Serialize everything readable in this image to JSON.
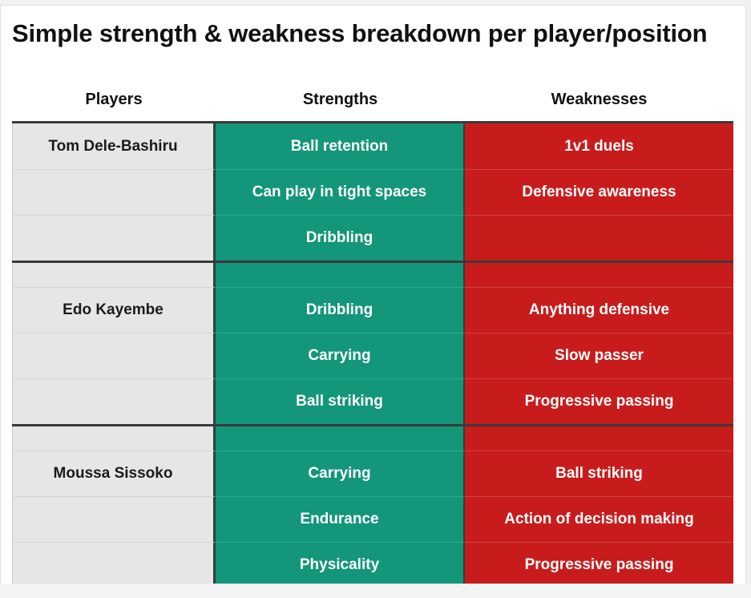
{
  "title": "Simple strength & weakness breakdown per player/position",
  "columns": {
    "players": "Players",
    "strengths": "Strengths",
    "weaknesses": "Weaknesses"
  },
  "colors": {
    "strength": "#13967a",
    "weakness": "#c81c1c",
    "player": "#e6e6e6"
  },
  "chart_data": {
    "type": "table",
    "title": "Simple strength & weakness breakdown per player/position",
    "columns": [
      "Players",
      "Strengths",
      "Weaknesses"
    ],
    "groups": [
      {
        "player": "Tom Dele-Bashiru",
        "strengths": [
          "Ball retention",
          "Can play in tight spaces",
          "Dribbling"
        ],
        "weaknesses": [
          "1v1 duels",
          "Defensive awareness",
          ""
        ]
      },
      {
        "player": "Edo Kayembe",
        "strengths": [
          "Dribbling",
          "Carrying",
          "Ball striking"
        ],
        "weaknesses": [
          "Anything defensive",
          "Slow passer",
          "Progressive passing"
        ]
      },
      {
        "player": "Moussa Sissoko",
        "strengths": [
          "Carrying",
          "Endurance",
          "Physicality"
        ],
        "weaknesses": [
          "Ball striking",
          "Action of decision making",
          "Progressive passing"
        ]
      }
    ]
  }
}
